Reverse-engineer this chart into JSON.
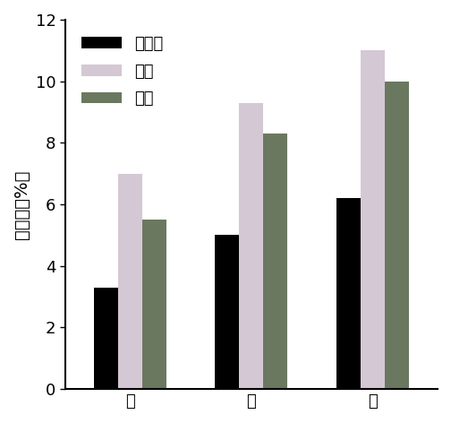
{
  "categories": [
    "牛",
    "猪",
    "鸡"
  ],
  "series": [
    {
      "label": "对照组",
      "values": [
        3.3,
        5.0,
        6.2
      ],
      "color": "#000000"
    },
    {
      "label": "夏季",
      "values": [
        7.0,
        9.3,
        11.0
      ],
      "color": "#d4c8d4"
    },
    {
      "label": "冬季",
      "values": [
        5.5,
        8.3,
        10.0
      ],
      "color": "#6b7860"
    }
  ],
  "ylabel": "总养分（%）",
  "ylim": [
    0,
    12
  ],
  "yticks": [
    0,
    2,
    4,
    6,
    8,
    10,
    12
  ],
  "bar_width": 0.13,
  "figsize": [
    5.04,
    4.72
  ],
  "dpi": 100,
  "legend_fontsize": 13,
  "axis_fontsize": 14,
  "tick_fontsize": 13
}
